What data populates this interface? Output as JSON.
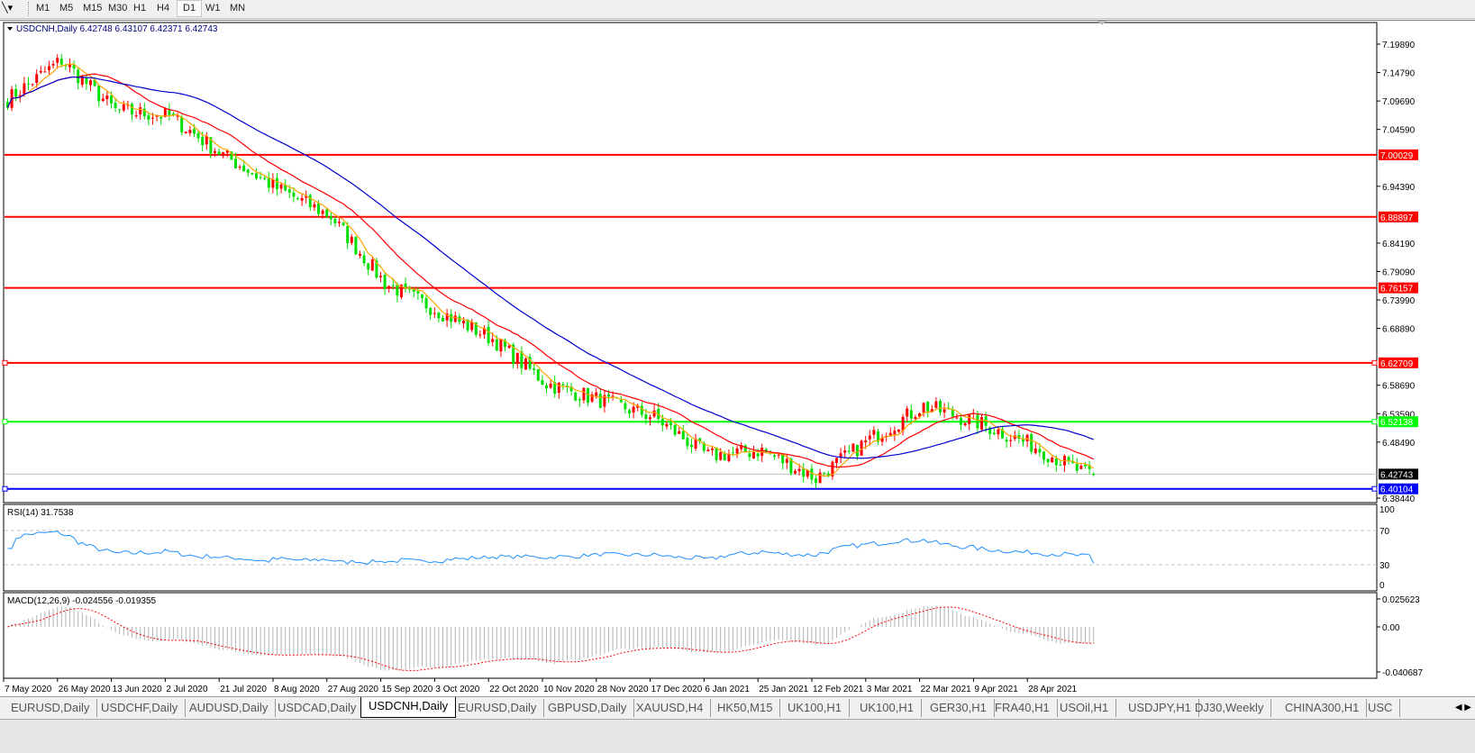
{
  "toolbar": {
    "tool_icon": "line-studies-icon",
    "timeframes": [
      "M1",
      "M5",
      "M15",
      "M30",
      "H1",
      "H4",
      "D1",
      "W1",
      "MN"
    ],
    "active_timeframe": "D1"
  },
  "chart": {
    "header": "USDCNH,Daily  6.42748 6.43107 6.42371 6.42743",
    "symbol": "USDCNH",
    "period": "Daily",
    "ohlc": {
      "open": 6.42748,
      "high": 6.43107,
      "low": 6.42371,
      "close": 6.42743
    },
    "colors": {
      "bull_candle": "#ff0000",
      "bear_candle": "#00e000",
      "ma_fast": "#ffa500",
      "ma_mid": "#ff0000",
      "ma_slow": "#0000cd",
      "rsi": "#1e90ff",
      "macd_hist": "#b4b4b4",
      "macd_signal": "#ff0000"
    },
    "price_axis": [
      "7.19890",
      "7.14790",
      "7.09690",
      "7.04590",
      "6.94390",
      "6.84190",
      "6.79090",
      "6.73990",
      "6.68890",
      "6.58690",
      "6.53590",
      "6.48490",
      "6.38440"
    ],
    "levels": [
      {
        "price": "7.00029",
        "color": "#ff0000"
      },
      {
        "price": "6.88897",
        "color": "#ff0000"
      },
      {
        "price": "6.76157",
        "color": "#ff0000"
      },
      {
        "price": "6.62709",
        "color": "#ff0000"
      },
      {
        "price": "6.52138",
        "color": "#00ff00"
      },
      {
        "price": "6.40104",
        "color": "#0000ff"
      }
    ],
    "current_price": "6.42743",
    "time_axis": [
      "7 May 2020",
      "26 May 2020",
      "13 Jun 2020",
      "2 Jul 2020",
      "21 Jul 2020",
      "8 Aug 2020",
      "27 Aug 2020",
      "15 Sep 2020",
      "3 Oct 2020",
      "22 Oct 2020",
      "10 Nov 2020",
      "28 Nov 2020",
      "17 Dec 2020",
      "6 Jan 2021",
      "25 Jan 2021",
      "12 Feb 2021",
      "3 Mar 2021",
      "22 Mar 2021",
      "9 Apr 2021",
      "28 Apr 2021"
    ]
  },
  "rsi": {
    "label": "RSI(14) 31.7538",
    "levels": [
      "100",
      "70",
      "30",
      "0"
    ]
  },
  "macd": {
    "label": "MACD(12,26,9) -0.024556 -0.019355",
    "axis": [
      "0.025623",
      "0.00",
      "-0.040687"
    ]
  },
  "chart_data": {
    "type": "candlestick",
    "x": [
      "7 May 2020",
      "26 May 2020",
      "13 Jun 2020",
      "2 Jul 2020",
      "21 Jul 2020",
      "8 Aug 2020",
      "27 Aug 2020",
      "15 Sep 2020",
      "3 Oct 2020",
      "22 Oct 2020",
      "10 Nov 2020",
      "28 Nov 2020",
      "17 Dec 2020",
      "6 Jan 2021",
      "25 Jan 2021",
      "12 Feb 2021",
      "3 Mar 2021",
      "22 Mar 2021",
      "9 Apr 2021",
      "28 Apr 2021",
      "latest"
    ],
    "close_approx": [
      7.1,
      7.17,
      7.08,
      7.07,
      7.0,
      6.94,
      6.89,
      6.77,
      6.72,
      6.67,
      6.59,
      6.56,
      6.53,
      6.46,
      6.47,
      6.42,
      6.49,
      6.55,
      6.52,
      6.48,
      6.42743
    ],
    "ylim": [
      6.3844,
      7.1989
    ],
    "rsi_levels": [
      30,
      70
    ],
    "macd_range": [
      -0.040687,
      0.025623
    ]
  },
  "tabs": {
    "items": [
      "EURUSD,Daily",
      "USDCHF,Daily",
      "AUDUSD,Daily",
      "USDCAD,Daily",
      "USDCNH,Daily",
      "EURUSD,Daily",
      "GBPUSD,Daily",
      "XAUUSD,H4",
      "HK50,M15",
      "UK100,H1",
      "UK100,H1",
      "GER30,H1",
      "FRA40,H1",
      "USOil,H1",
      "USDJPY,H1",
      "DJ30,Weekly",
      "CHINA300,H1",
      "USC"
    ],
    "active": "USDCNH,Daily",
    "scroll_icon": "scroll-arrows-icon"
  }
}
